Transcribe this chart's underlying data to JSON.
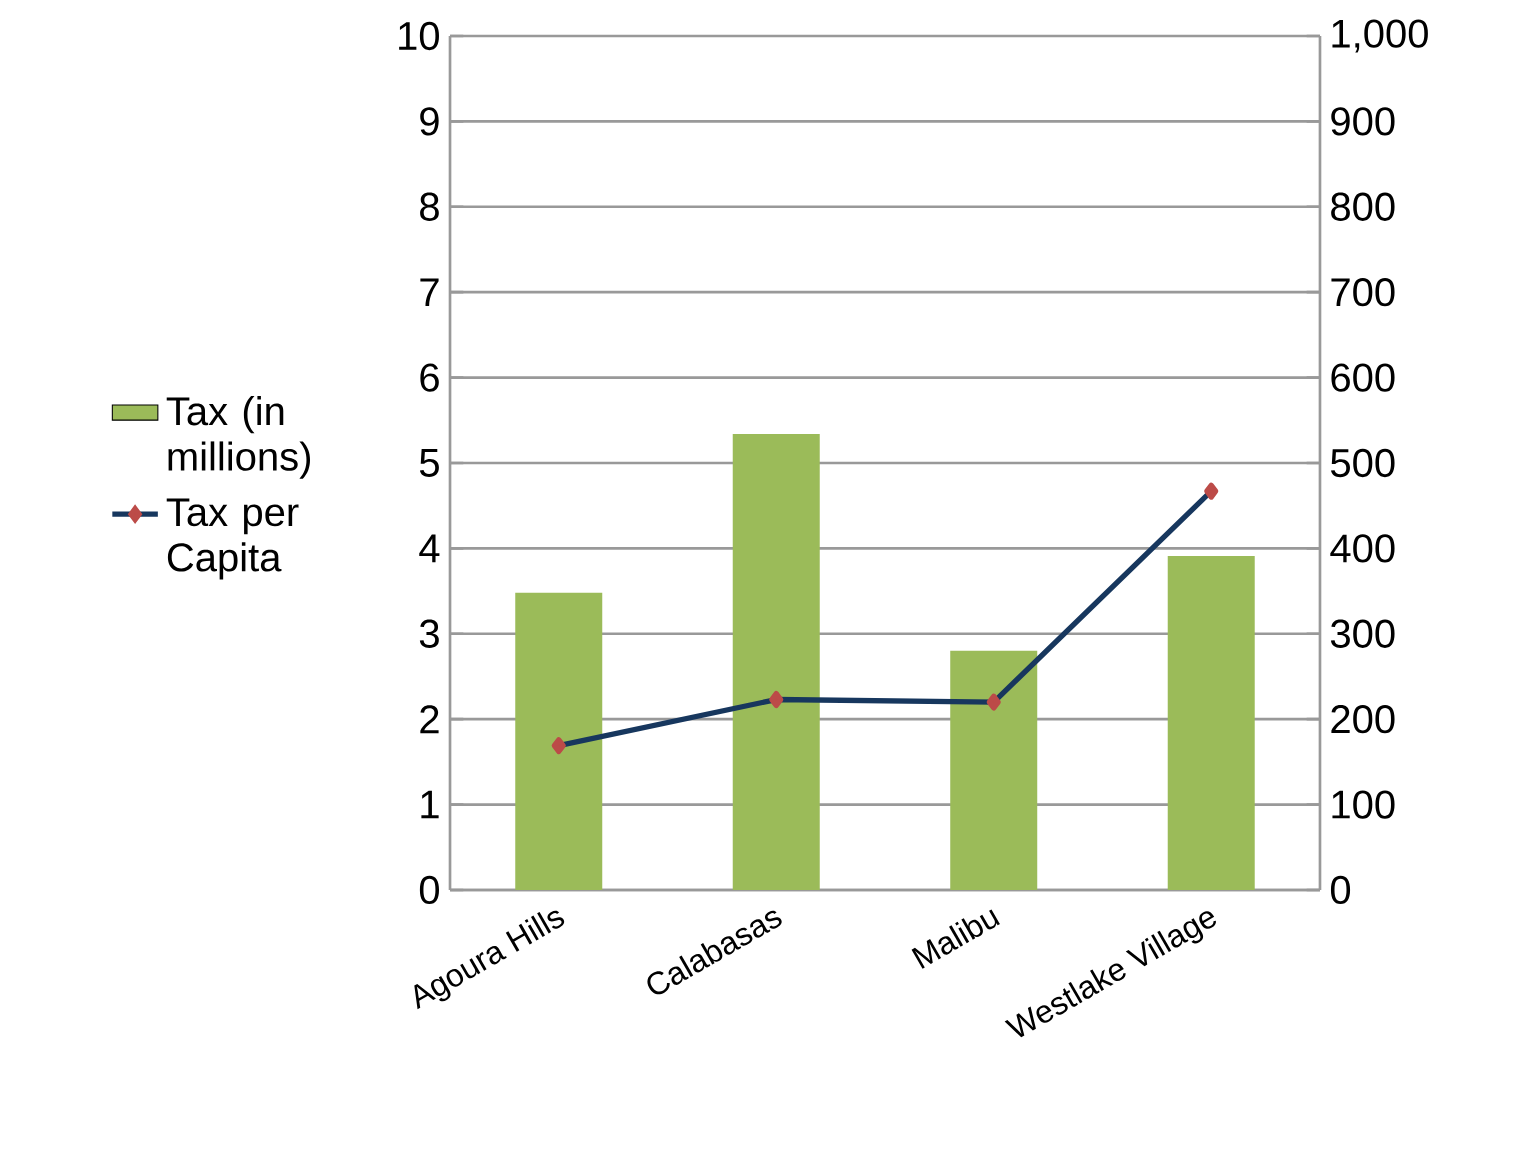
{
  "chart_data": {
    "type": "bar",
    "categories": [
      "Agoura Hills",
      "Calabasas",
      "Malibu",
      "Westlake Village"
    ],
    "series": [
      {
        "name": "Tax (in millions)",
        "color": "#9bbb59",
        "values": [
          3.48,
          5.34,
          2.8,
          3.91
        ]
      },
      {
        "name": "Tax per Capita",
        "type": "line",
        "axis": "y2",
        "color": "#17375e",
        "marker": "diamond",
        "values": [
          169,
          223,
          220,
          467
        ]
      }
    ],
    "ylim": [
      0,
      10
    ],
    "yticks": [
      0,
      1,
      2,
      3,
      4,
      5,
      6,
      7,
      8,
      9,
      10
    ],
    "y2lim": [
      0,
      1000
    ],
    "y2ticks": [
      0,
      100,
      200,
      300,
      400,
      500,
      600,
      700,
      800,
      {
        "value": 900,
        "label": "900"
      },
      {
        "value": 1000,
        "label": "1,000"
      }
    ],
    "grid": "y",
    "legend": "left"
  }
}
